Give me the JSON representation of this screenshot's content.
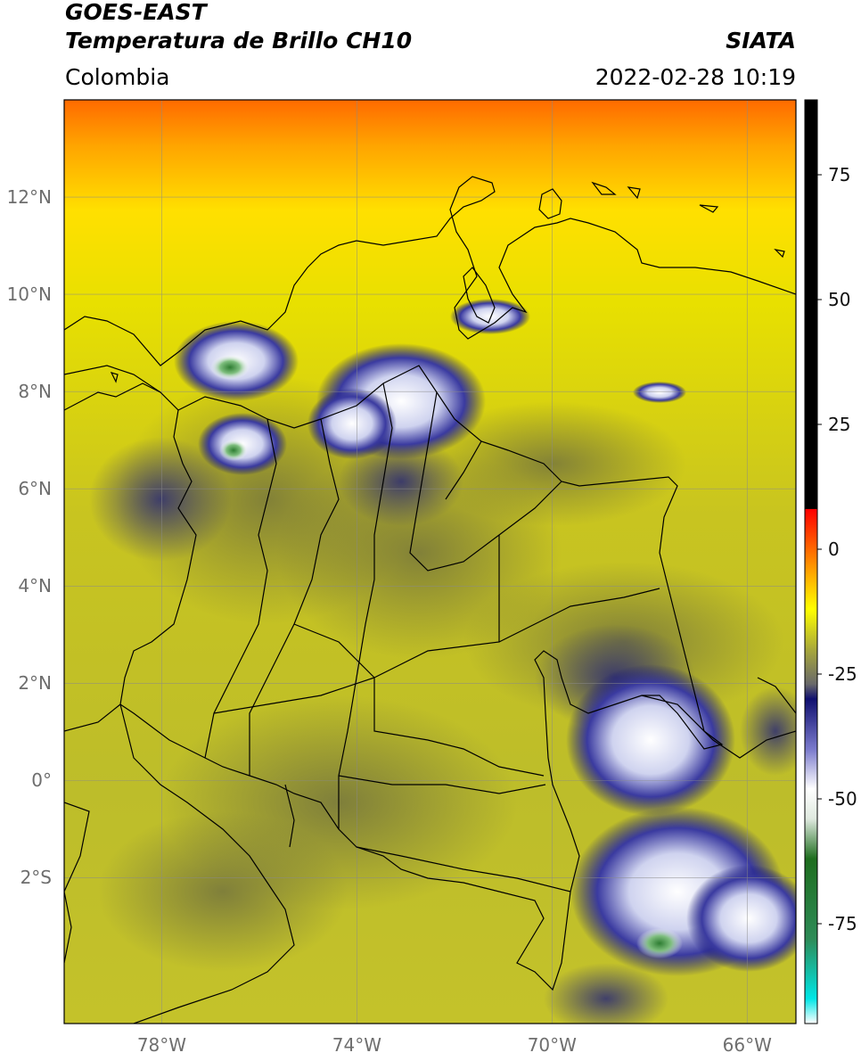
{
  "header": {
    "line1": "GOES-EAST",
    "line2": "Temperatura de Brillo CH10",
    "region": "Colombia",
    "agency": "SIATA",
    "datetime": "2022-02-28 10:19"
  },
  "map": {
    "extent": {
      "lon": [
        -80,
        -65
      ],
      "lat": [
        -5,
        14
      ]
    },
    "lat_ticks": [
      {
        "value": 12,
        "label": "12°N"
      },
      {
        "value": 10,
        "label": "10°N"
      },
      {
        "value": 8,
        "label": "8°N"
      },
      {
        "value": 6,
        "label": "6°N"
      },
      {
        "value": 4,
        "label": "4°N"
      },
      {
        "value": 2,
        "label": "2°N"
      },
      {
        "value": 0,
        "label": "0°"
      },
      {
        "value": -2,
        "label": "2°S"
      }
    ],
    "lon_ticks": [
      {
        "value": -78,
        "label": "78°W"
      },
      {
        "value": -74,
        "label": "74°W"
      },
      {
        "value": -70,
        "label": "70°W"
      },
      {
        "value": -66,
        "label": "66°W"
      }
    ],
    "grid": true
  },
  "colorbar": {
    "range": [
      -95,
      90
    ],
    "ticks": [
      {
        "value": 75,
        "label": "75"
      },
      {
        "value": 50,
        "label": "50"
      },
      {
        "value": 25,
        "label": "25"
      },
      {
        "value": 0,
        "label": "0"
      },
      {
        "value": -25,
        "label": "-25"
      },
      {
        "value": -50,
        "label": "-50"
      },
      {
        "value": -75,
        "label": "-75"
      }
    ],
    "stops": [
      {
        "value": -95,
        "color": "#ffffff"
      },
      {
        "value": -90,
        "color": "#00e6e6"
      },
      {
        "value": -78,
        "color": "#2e8b57"
      },
      {
        "value": -62,
        "color": "#1f6e1f"
      },
      {
        "value": -54,
        "color": "#dfe9df"
      },
      {
        "value": -48,
        "color": "#ffffff"
      },
      {
        "value": -40,
        "color": "#7a7acc"
      },
      {
        "value": -30,
        "color": "#101070"
      },
      {
        "value": -27,
        "color": "#6a6a6a"
      },
      {
        "value": -20,
        "color": "#a9a93a"
      },
      {
        "value": -12,
        "color": "#ffff00"
      },
      {
        "value": -5,
        "color": "#ffaa00"
      },
      {
        "value": 8,
        "color": "#ff0000"
      },
      {
        "value": 8.1,
        "color": "#000000"
      },
      {
        "value": 90,
        "color": "#000000"
      }
    ]
  }
}
